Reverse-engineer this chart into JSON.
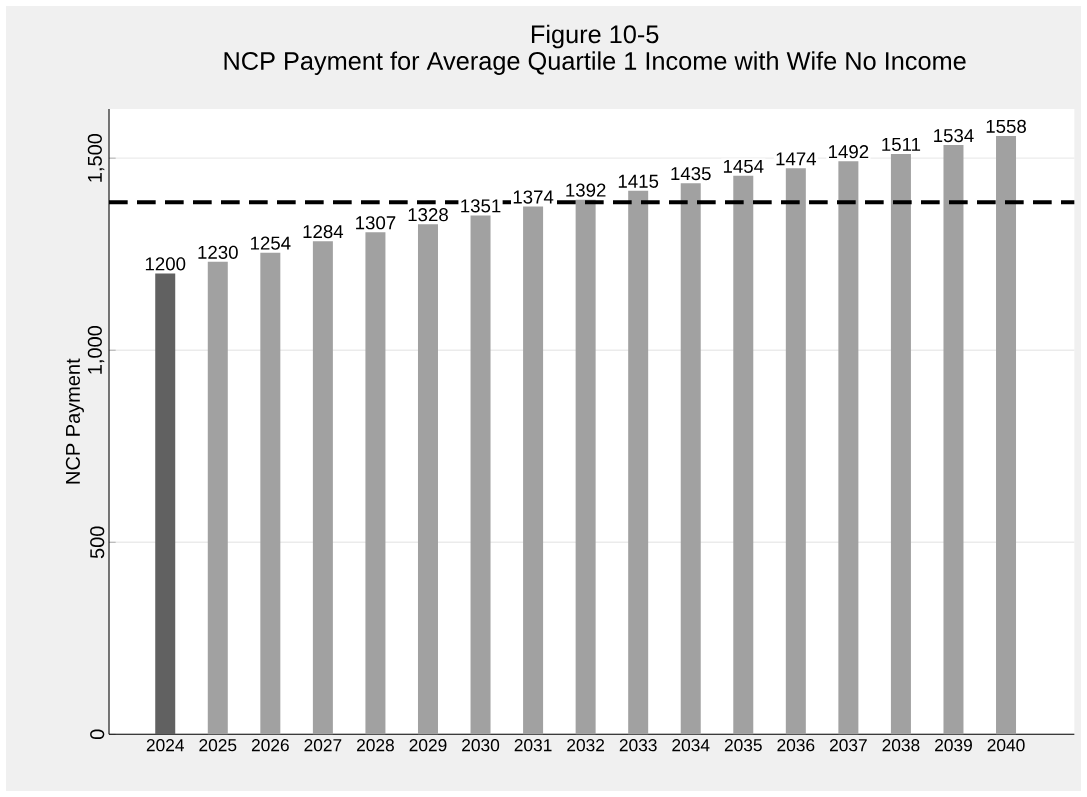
{
  "chart_data": {
    "type": "bar",
    "title": "Figure 10-5",
    "subtitle": "NCP Payment for Average Quartile 1 Income with Wife No Income",
    "ylabel": "NCP Payment",
    "categories": [
      "2024",
      "2025",
      "2026",
      "2027",
      "2028",
      "2029",
      "2030",
      "2031",
      "2032",
      "2033",
      "2034",
      "2035",
      "2036",
      "2037",
      "2038",
      "2039",
      "2040"
    ],
    "values": [
      1200,
      1230,
      1254,
      1284,
      1307,
      1328,
      1351,
      1374,
      1392,
      1415,
      1435,
      1454,
      1474,
      1492,
      1511,
      1534,
      1558
    ],
    "colors": [
      "#616161",
      "#a1a1a1",
      "#a1a1a1",
      "#a1a1a1",
      "#a1a1a1",
      "#a1a1a1",
      "#a1a1a1",
      "#a1a1a1",
      "#a1a1a1",
      "#a1a1a1",
      "#a1a1a1",
      "#a1a1a1",
      "#a1a1a1",
      "#a1a1a1",
      "#a1a1a1",
      "#a1a1a1",
      "#a1a1a1"
    ],
    "data_labels": true,
    "ylim": [
      0,
      1628
    ],
    "yticks": [
      0,
      {
        "value": 500,
        "label": "500"
      },
      {
        "value": 1000,
        "label": "1,000"
      },
      {
        "value": 1500,
        "label": "1,500"
      }
    ],
    "grid": "y",
    "ref_lines": [
      {
        "axis": "y",
        "value": 1385,
        "color": "#000000",
        "line_style": "dashed"
      }
    ]
  }
}
